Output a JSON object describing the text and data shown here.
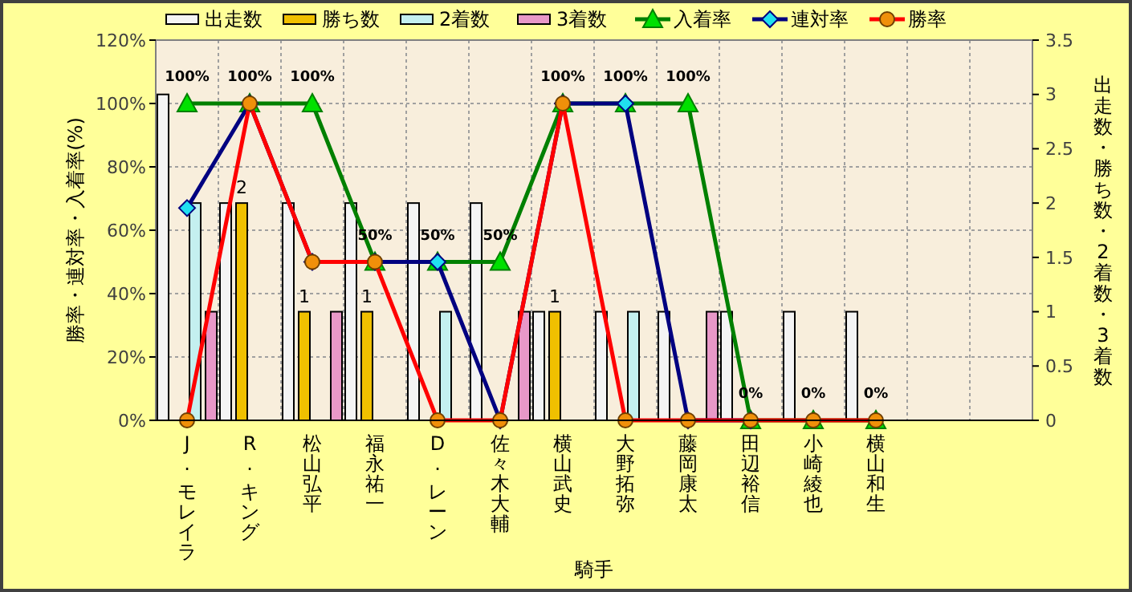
{
  "chart_data": {
    "type": "bar",
    "xlabel": "騎手",
    "ylabel": "勝率・連対率・入着率(%)",
    "y2label": "出走数・勝ち数・2着数・3着数",
    "categories": [
      "J. モレイラ",
      "R. キング",
      "松山弘平",
      "福永祐一",
      "D. レーン",
      "佐々木大輔",
      "横山武史",
      "大野拓弥",
      "藤岡康太",
      "田辺裕信",
      "小崎綾也",
      "横山和生",
      null,
      null
    ],
    "series": [
      {
        "name": "出走数",
        "axis": "y2",
        "color": "#f4f4f4",
        "values": [
          3,
          2,
          2,
          2,
          2,
          2,
          1,
          1,
          1,
          1,
          1,
          1,
          null,
          null
        ]
      },
      {
        "name": "勝ち数",
        "axis": "y2",
        "color": "#f0c000",
        "values": [
          0,
          2,
          1,
          1,
          0,
          0,
          1,
          0,
          0,
          0,
          0,
          0,
          null,
          null
        ],
        "value_labels": [
          null,
          "2",
          "1",
          "1",
          null,
          null,
          "1",
          null,
          null,
          null,
          null,
          null,
          null,
          null
        ]
      },
      {
        "name": "2着数",
        "axis": "y2",
        "color": "#c4f0f0",
        "values": [
          2,
          0,
          0,
          0,
          1,
          0,
          0,
          1,
          0,
          0,
          0,
          0,
          null,
          null
        ]
      },
      {
        "name": "3着数",
        "axis": "y2",
        "color": "#e898c8",
        "values": [
          1,
          0,
          1,
          0,
          0,
          1,
          0,
          0,
          1,
          0,
          0,
          0,
          null,
          null
        ]
      },
      {
        "name": "入着率",
        "type": "line",
        "color": "#008000",
        "marker": "triangle",
        "values": [
          100,
          100,
          100,
          50,
          50,
          50,
          100,
          100,
          100,
          0,
          0,
          0,
          null,
          null
        ],
        "value_labels": [
          "100%",
          "100%",
          "100%",
          "50%",
          "50%",
          "50%",
          "100%",
          "100%",
          "100%",
          "0%",
          "0%",
          "0%",
          null,
          null
        ]
      },
      {
        "name": "連対率",
        "type": "line",
        "color": "#000080",
        "marker": "diamond",
        "values": [
          67,
          100,
          50,
          50,
          50,
          0,
          100,
          100,
          0,
          0,
          null,
          null,
          null,
          null
        ]
      },
      {
        "name": "勝率",
        "type": "line",
        "color": "#ff0000",
        "marker": "circle",
        "values": [
          0,
          100,
          50,
          50,
          0,
          0,
          100,
          0,
          0,
          0,
          0,
          0,
          null,
          null
        ]
      }
    ],
    "ylim": [
      0,
      120
    ],
    "yticks": [
      {
        "value": 0,
        "label": "0%"
      },
      {
        "value": 20,
        "label": "20%"
      },
      {
        "value": 40,
        "label": "40%"
      },
      {
        "value": 60,
        "label": "60%"
      },
      {
        "value": 80,
        "label": "80%"
      },
      {
        "value": 100,
        "label": "100%"
      },
      {
        "value": 120,
        "label": "120%"
      }
    ],
    "y2lim": [
      0,
      3.5
    ],
    "y2ticks": [
      0,
      0.5,
      1,
      1.5,
      2,
      2.5,
      3,
      3.5
    ],
    "grid": true,
    "legend": "top"
  }
}
